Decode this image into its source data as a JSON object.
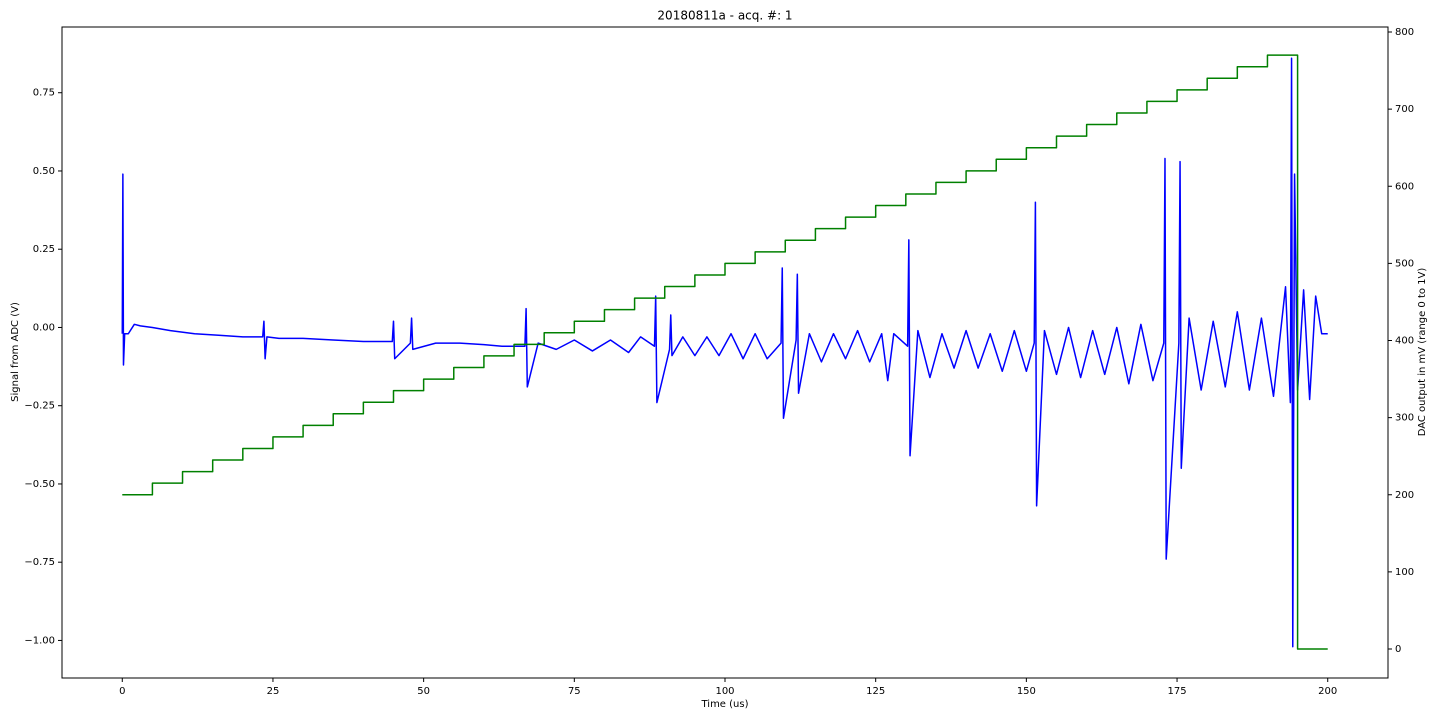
{
  "chart_data": {
    "type": "line",
    "title": "20180811a - acq. #: 1",
    "x_label": "Time (us)",
    "y_label": "Signal from ADC (V)",
    "y2_label": "DAC output in mV (range 0 to 1V)",
    "xlim": [
      -10,
      210
    ],
    "xticks": [
      0,
      25,
      50,
      75,
      100,
      125,
      150,
      175,
      200
    ],
    "ylim": [
      -1.12,
      0.96
    ],
    "yticks": [
      {
        "value": -1.0,
        "label": "−1.00"
      },
      {
        "value": -0.75,
        "label": "−0.75"
      },
      {
        "value": -0.5,
        "label": "−0.50"
      },
      {
        "value": -0.25,
        "label": "−0.25"
      },
      {
        "value": 0,
        "label": "0.00"
      },
      {
        "value": 0.25,
        "label": "0.25"
      },
      {
        "value": 0.5,
        "label": "0.50"
      },
      {
        "value": 0.75,
        "label": "0.75"
      }
    ],
    "y2lim": [
      -37.6,
      806.5
    ],
    "y2ticks": [
      0,
      100,
      200,
      300,
      400,
      500,
      600,
      700,
      800
    ],
    "y_label_color": "#0000ff",
    "y2_label_color": "#008000",
    "series": [
      {
        "color": "#0000ff",
        "axis": "y",
        "x": [
          0,
          0.1,
          0.2,
          0.4,
          1,
          2,
          3,
          5,
          8,
          12,
          16,
          20,
          23.3,
          23.5,
          23.7,
          24,
          26,
          30,
          35,
          40,
          44.8,
          45,
          45.2,
          47.8,
          48,
          48.2,
          52,
          56,
          60,
          63,
          66.8,
          67,
          67.2,
          69,
          72,
          75,
          78,
          81,
          84,
          86,
          88.3,
          88.5,
          88.7,
          90.8,
          91,
          91.2,
          93,
          95,
          97,
          99,
          101,
          103,
          105,
          107,
          109.3,
          109.5,
          109.7,
          111.8,
          112,
          112.2,
          114,
          116,
          118,
          120,
          122,
          124,
          126,
          127,
          128,
          130.3,
          130.5,
          130.7,
          132,
          134,
          136,
          138,
          140,
          142,
          144,
          146,
          148,
          150,
          151.3,
          151.5,
          151.7,
          153,
          155,
          157,
          159,
          161,
          163,
          165,
          167,
          169,
          171,
          172.8,
          173,
          173.2,
          175.3,
          175.5,
          175.7,
          177,
          179,
          181,
          183,
          185,
          187,
          189,
          191,
          193,
          193.8,
          194,
          194.2,
          194.5,
          195,
          196,
          197,
          198,
          199,
          200
        ],
        "values": [
          -0.02,
          0.49,
          -0.12,
          -0.02,
          -0.02,
          0.01,
          0.005,
          0.0,
          -0.01,
          -0.02,
          -0.025,
          -0.03,
          -0.03,
          0.02,
          -0.1,
          -0.03,
          -0.035,
          -0.035,
          -0.04,
          -0.045,
          -0.045,
          0.02,
          -0.1,
          -0.05,
          0.03,
          -0.07,
          -0.05,
          -0.05,
          -0.055,
          -0.06,
          -0.06,
          0.06,
          -0.19,
          -0.05,
          -0.07,
          -0.04,
          -0.075,
          -0.04,
          -0.08,
          -0.03,
          -0.06,
          0.1,
          -0.24,
          -0.07,
          0.04,
          -0.09,
          -0.03,
          -0.09,
          -0.03,
          -0.09,
          -0.02,
          -0.1,
          -0.02,
          -0.1,
          -0.05,
          0.19,
          -0.29,
          -0.04,
          0.17,
          -0.21,
          -0.02,
          -0.11,
          -0.02,
          -0.1,
          -0.01,
          -0.11,
          -0.02,
          -0.17,
          -0.02,
          -0.06,
          0.28,
          -0.41,
          -0.01,
          -0.16,
          -0.02,
          -0.13,
          -0.01,
          -0.13,
          -0.02,
          -0.14,
          -0.01,
          -0.14,
          -0.05,
          0.4,
          -0.57,
          -0.01,
          -0.15,
          0.0,
          -0.16,
          -0.01,
          -0.15,
          0.0,
          -0.18,
          0.01,
          -0.17,
          -0.05,
          0.54,
          -0.74,
          -0.05,
          0.53,
          -0.45,
          0.03,
          -0.2,
          0.02,
          -0.19,
          0.05,
          -0.2,
          0.03,
          -0.22,
          0.13,
          -0.24,
          0.86,
          -1.02,
          0.49,
          -0.2,
          0.12,
          -0.23,
          0.1,
          -0.02,
          -0.02
        ]
      },
      {
        "color": "#008000",
        "axis": "y2",
        "drawstyle": "steps-post",
        "x": [
          0,
          5,
          10,
          15,
          20,
          25,
          30,
          35,
          40,
          45,
          50,
          55,
          60,
          65,
          70,
          75,
          80,
          85,
          90,
          95,
          100,
          105,
          110,
          115,
          120,
          125,
          130,
          135,
          140,
          145,
          150,
          155,
          160,
          165,
          170,
          175,
          180,
          185,
          190,
          195,
          200
        ],
        "values": [
          200,
          215,
          230,
          245,
          260,
          275,
          290,
          305,
          320,
          335,
          350,
          365,
          380,
          395,
          410,
          425,
          440,
          455,
          470,
          485,
          500,
          515,
          530,
          545,
          560,
          575,
          590,
          605,
          620,
          635,
          650,
          665,
          680,
          695,
          710,
          725,
          740,
          755,
          770,
          0,
          0
        ]
      }
    ]
  }
}
